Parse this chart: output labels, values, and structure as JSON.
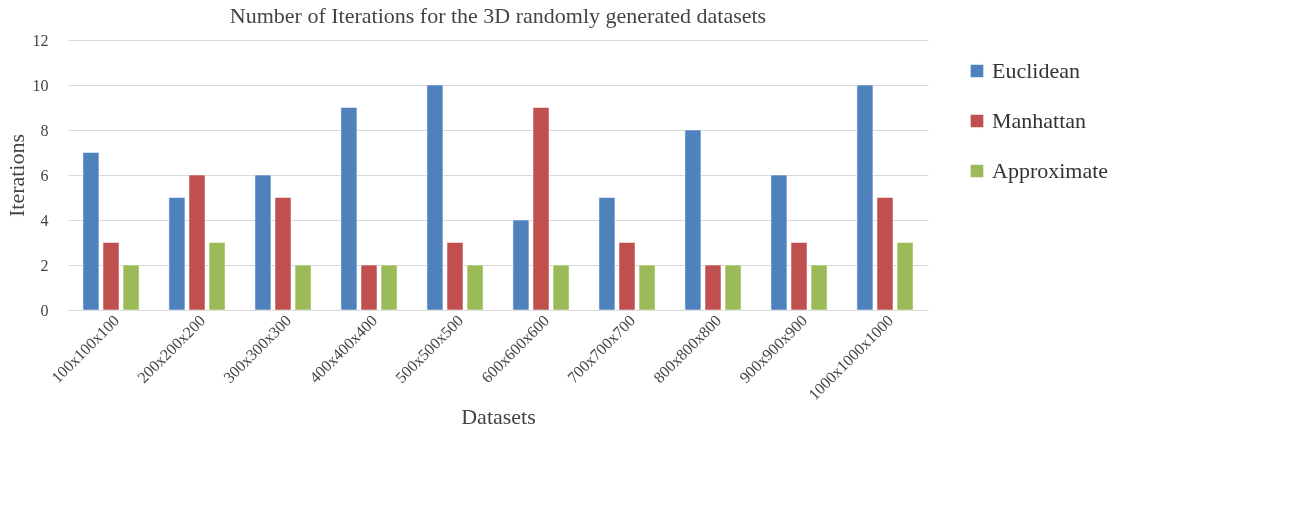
{
  "chart_data": {
    "type": "bar",
    "title": "Number of Iterations for the 3D randomly generated datasets",
    "xlabel": "Datasets",
    "ylabel": "Iterations",
    "categories": [
      "100x100x100",
      "200x200x200",
      "300x300x300",
      "400x400x400",
      "500x500x500",
      "600x600x600",
      "700x700x700",
      "800x800x800",
      "900x900x900",
      "1000x1000x1000"
    ],
    "series": [
      {
        "name": "Euclidean",
        "color": "#4f81bd",
        "values": [
          7,
          5,
          6,
          9,
          10,
          4,
          5,
          8,
          6,
          10
        ]
      },
      {
        "name": "Manhattan",
        "color": "#c0504d",
        "values": [
          3,
          6,
          5,
          2,
          3,
          9,
          3,
          2,
          3,
          5
        ]
      },
      {
        "name": "Approximate",
        "color": "#9bbb59",
        "values": [
          2,
          3,
          2,
          2,
          2,
          2,
          2,
          2,
          2,
          3
        ]
      }
    ],
    "ylim": [
      0,
      12
    ],
    "yticks": [
      0,
      2,
      4,
      6,
      8,
      10,
      12
    ],
    "grid": "y",
    "legend": "right"
  }
}
